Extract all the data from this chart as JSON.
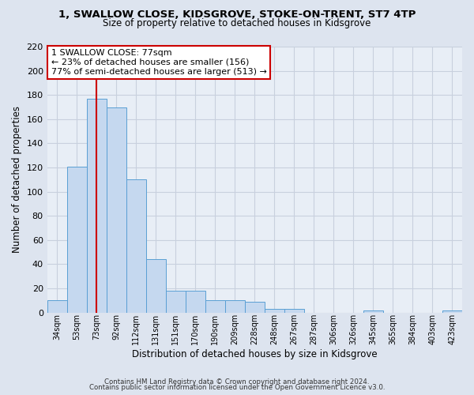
{
  "title": "1, SWALLOW CLOSE, KIDSGROVE, STOKE-ON-TRENT, ST7 4TP",
  "subtitle": "Size of property relative to detached houses in Kidsgrove",
  "xlabel": "Distribution of detached houses by size in Kidsgrove",
  "ylabel": "Number of detached properties",
  "bar_labels": [
    "34sqm",
    "53sqm",
    "73sqm",
    "92sqm",
    "112sqm",
    "131sqm",
    "151sqm",
    "170sqm",
    "190sqm",
    "209sqm",
    "228sqm",
    "248sqm",
    "267sqm",
    "287sqm",
    "306sqm",
    "326sqm",
    "345sqm",
    "365sqm",
    "384sqm",
    "403sqm",
    "423sqm"
  ],
  "bar_values": [
    10,
    121,
    177,
    170,
    110,
    44,
    18,
    18,
    10,
    10,
    9,
    3,
    3,
    0,
    0,
    0,
    2,
    0,
    0,
    0,
    2
  ],
  "bar_color": "#c5d8ef",
  "bar_edge_color": "#5a9fd4",
  "vline_x": 2,
  "vline_color": "#cc0000",
  "ylim": [
    0,
    220
  ],
  "yticks": [
    0,
    20,
    40,
    60,
    80,
    100,
    120,
    140,
    160,
    180,
    200,
    220
  ],
  "annotation_title": "1 SWALLOW CLOSE: 77sqm",
  "annotation_line1": "← 23% of detached houses are smaller (156)",
  "annotation_line2": "77% of semi-detached houses are larger (513) →",
  "annotation_box_color": "#ffffff",
  "annotation_box_edge": "#cc0000",
  "grid_color": "#c8d0de",
  "bg_color": "#dde4ef",
  "plot_bg_color": "#e8eef6",
  "footer1": "Contains HM Land Registry data © Crown copyright and database right 2024.",
  "footer2": "Contains public sector information licensed under the Open Government Licence v3.0."
}
